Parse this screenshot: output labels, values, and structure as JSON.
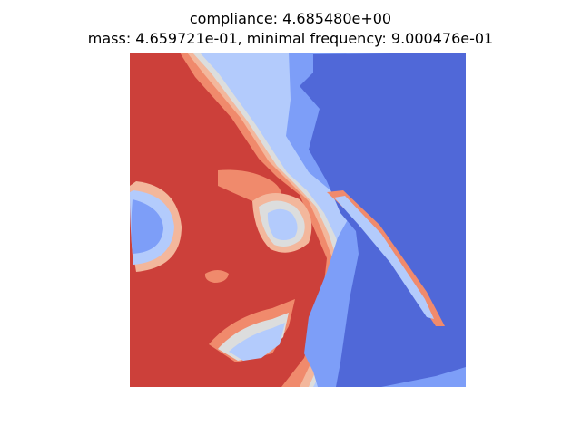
{
  "figure": {
    "title_line1": "compliance: 4.685480e+00",
    "title_line2": "mass: 4.659721e-01, minimal frequency: 9.000476e-01"
  },
  "chart_data": {
    "type": "heatmap",
    "title": "compliance: 4.685480e+00\nmass: 4.659721e-01, minimal frequency: 9.000476e-01",
    "colormap": "coolwarm",
    "axes_visible": false,
    "levels": [
      {
        "color": "#5068d8",
        "name": "level-0"
      },
      {
        "color": "#7d9ef8",
        "name": "level-1"
      },
      {
        "color": "#b3cbfc",
        "name": "level-2"
      },
      {
        "color": "#dcdddd",
        "name": "level-3"
      },
      {
        "color": "#f3b79c",
        "name": "level-4"
      },
      {
        "color": "#f08a6c",
        "name": "level-5"
      },
      {
        "color": "#cc403a",
        "name": "level-6"
      }
    ]
  }
}
